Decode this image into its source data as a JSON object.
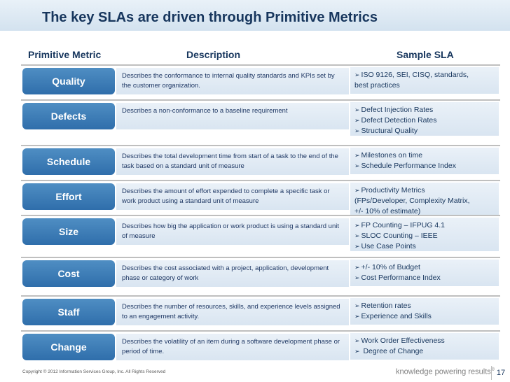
{
  "title": "The key SLAs are driven through Primitive Metrics",
  "headers": {
    "metric": "Primitive Metric",
    "description": "Description",
    "sla": "Sample SLA"
  },
  "rows": [
    {
      "metric": "Quality",
      "description": "Describes the conformance to internal quality standards and KPIs set by the customer organization.",
      "sla": [
        "ISO 9126, SEI, CISQ, standards,",
        "best practices"
      ],
      "sla_bullets": [
        true,
        false
      ]
    },
    {
      "metric": "Defects",
      "description": "Describes a non-conformance to a baseline requirement",
      "sla": [
        "Defect Injection Rates",
        "Defect Detection Rates",
        "Structural Quality"
      ],
      "sla_bullets": [
        true,
        true,
        true
      ]
    },
    {
      "metric": "Schedule",
      "description": "Describes the total development time from start of a task to the end of the task based on a standard unit of measure",
      "sla": [
        "Milestones on time",
        "Schedule Performance Index"
      ],
      "sla_bullets": [
        true,
        true
      ]
    },
    {
      "metric": "Effort",
      "description": "Describes the amount of effort expended to complete a specific task or work product using a standard unit of measure",
      "sla": [
        "Productivity Metrics",
        "(FPs/Developer, Complexity Matrix,",
        "+/- 10% of estimate)"
      ],
      "sla_bullets": [
        true,
        false,
        false
      ]
    },
    {
      "metric": "Size",
      "description": "Describes how big the application or work product is using a standard unit of measure",
      "sla": [
        "FP Counting – IFPUG 4.1",
        "SLOC Counting – IEEE",
        "Use Case Points"
      ],
      "sla_bullets": [
        true,
        true,
        true
      ]
    },
    {
      "metric": "Cost",
      "description": "Describes the cost associated with a project, application, development phase or category of work",
      "sla": [
        "+/- 10% of Budget",
        "Cost Performance Index"
      ],
      "sla_bullets": [
        true,
        true
      ]
    },
    {
      "metric": "Staff",
      "description": "Describes the number of resources, skills, and experience levels assigned to an engagement activity.",
      "sla": [
        "Retention rates",
        "Experience and Skills"
      ],
      "sla_bullets": [
        true,
        true
      ]
    },
    {
      "metric": "Change",
      "description": "Describes the volatility of an item during a software development phase or period of time.",
      "sla": [
        "Work Order Effectiveness",
        " Degree of Change"
      ],
      "sla_bullets": [
        true,
        true
      ]
    }
  ],
  "footer": {
    "copyright": "Copyright © 2012 Information Services Group, Inc. All Rights Reserved",
    "brand": "knowledge powering results",
    "brand_mark": "®",
    "page_number": "17"
  }
}
